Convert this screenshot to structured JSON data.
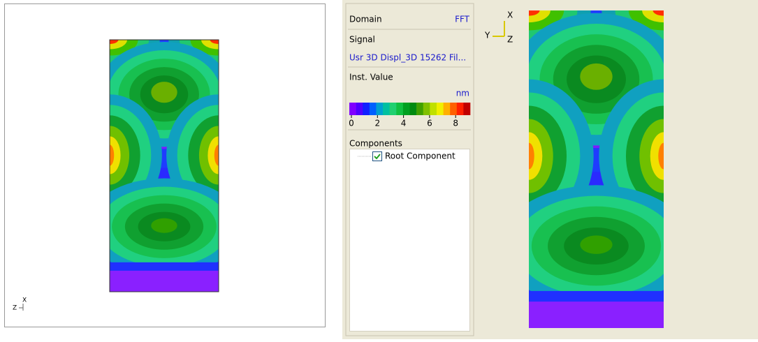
{
  "left_view": {
    "axes": {
      "x": "X",
      "z": "Z"
    }
  },
  "properties": {
    "domain_label": "Domain",
    "domain_value": "FFT",
    "signal_label": "Signal",
    "signal_value": "Usr 3D Displ_3D 15262 Fil...",
    "inst_value_label": "Inst. Value",
    "unit": "nm",
    "colorbar_ticks": [
      0,
      2,
      4,
      6,
      8
    ],
    "components_label": "Components",
    "components": [
      "Root Component"
    ]
  },
  "right_view": {
    "axes": {
      "x": "X",
      "y": "Y",
      "z": "Z"
    }
  }
}
